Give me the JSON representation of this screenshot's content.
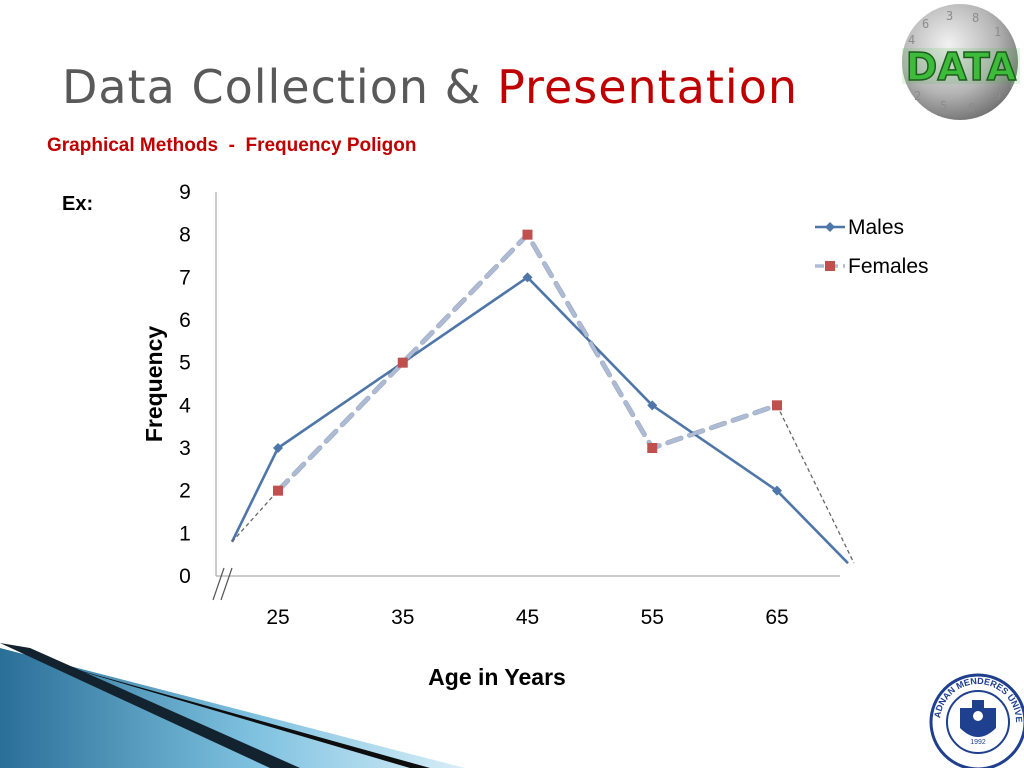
{
  "slide": {
    "title_part1": "Data Collection & ",
    "title_part2": "Presentation",
    "subtitle": "Graphical Methods  -  Frequency Poligon",
    "example_label": "Ex:",
    "logo_text": "DATA",
    "seal_text": "ADNAN MENDERES ÜNİVERSİTESİ",
    "seal_year": "1992"
  },
  "colors": {
    "title_gray": "#595959",
    "accent_red": "#c00000",
    "males": "#4f76a8",
    "females_line": "#aebbd4",
    "females_marker": "#c0504d",
    "logo_green": "#3dbb3a"
  },
  "chart_data": {
    "type": "line",
    "title": "",
    "xlabel": "Age in Years",
    "ylabel": "Frequency",
    "categories": [
      "25",
      "35",
      "45",
      "55",
      "65"
    ],
    "ylim": [
      0,
      9
    ],
    "yticks": [
      0,
      1,
      2,
      3,
      4,
      5,
      6,
      7,
      8,
      9
    ],
    "grid": false,
    "legend_position": "top-right",
    "series": [
      {
        "name": "Males",
        "marker": "diamond",
        "style": "solid",
        "values": [
          3,
          5,
          7,
          4,
          2
        ],
        "open_start": 0.8,
        "open_end": 0.3
      },
      {
        "name": "Females",
        "marker": "square",
        "style": "dashed",
        "values": [
          2,
          5,
          8,
          3,
          4
        ],
        "open_start": 0.8,
        "open_end": 0.3
      }
    ]
  }
}
